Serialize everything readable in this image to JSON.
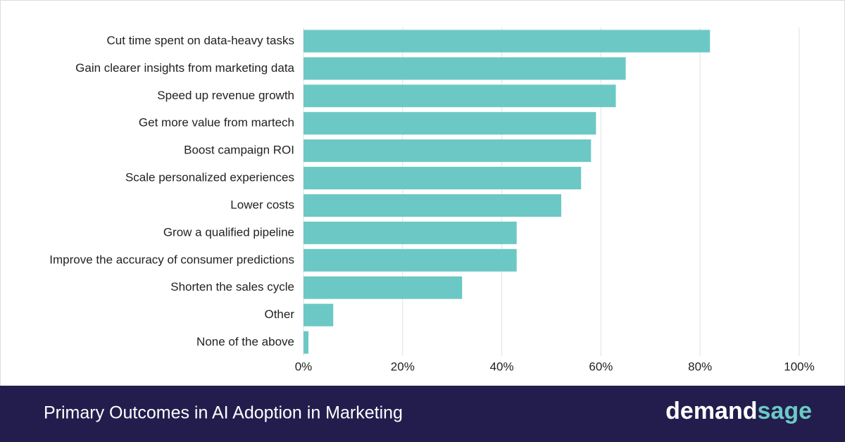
{
  "chart_data": {
    "type": "barh",
    "title": "Primary Outcomes in AI Adoption in Marketing",
    "categories": [
      "Cut time spent on data-heavy tasks",
      "Gain clearer insights from marketing data",
      "Speed up revenue growth",
      "Get more value from martech",
      "Boost campaign ROI",
      "Scale personalized experiences",
      "Lower costs",
      "Grow a qualified pipeline",
      "Improve the accuracy of consumer predictions",
      "Shorten the sales cycle",
      "Other",
      "None of the above"
    ],
    "values": [
      82,
      65,
      63,
      59,
      58,
      56,
      52,
      43,
      43,
      32,
      6,
      1
    ],
    "color": "#6cc8c4",
    "xlim": [
      0,
      100
    ],
    "xticks": [
      {
        "value": 0,
        "label": "0%"
      },
      {
        "value": 20,
        "label": "20%"
      },
      {
        "value": 40,
        "label": "40%"
      },
      {
        "value": 60,
        "label": "60%"
      },
      {
        "value": 80,
        "label": "80%"
      },
      {
        "value": 100,
        "label": "100%"
      }
    ],
    "grid": true
  },
  "brand": {
    "first": "demand",
    "second": "sage"
  }
}
